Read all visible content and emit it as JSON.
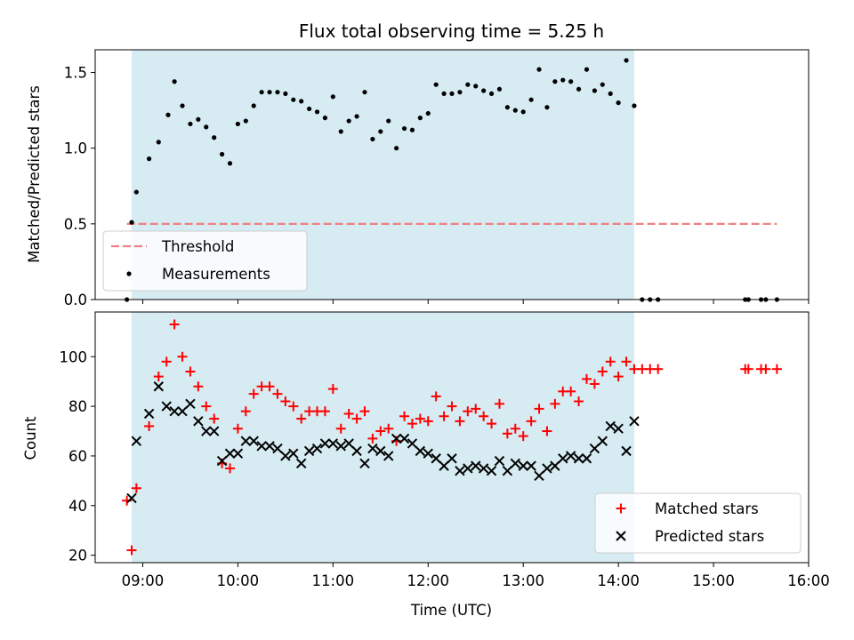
{
  "chart_data": [
    {
      "type": "scatter",
      "title": "Flux total observing time = 5.25 h",
      "xlabel": "",
      "ylabel": "Matched/Predicted stars",
      "xlim": [
        "08:30",
        "16:00"
      ],
      "ylim": [
        0,
        1.65
      ],
      "yticks": [
        "0.0",
        "0.5",
        "1.0",
        "1.5"
      ],
      "shaded_span": [
        "08:53",
        "14:10"
      ],
      "legend": {
        "placement": "lower-left",
        "entries": [
          "Threshold",
          "Measurements"
        ]
      },
      "threshold": {
        "name": "Threshold",
        "value": 0.5,
        "x_range": [
          "08:50",
          "15:40"
        ],
        "color": "#f08080",
        "style": "dashed"
      },
      "series": [
        {
          "name": "Measurements",
          "color": "#000000",
          "points": [
            [
              "08:50",
              0.0
            ],
            [
              "08:53",
              0.51
            ],
            [
              "08:56",
              0.71
            ],
            [
              "09:04",
              0.93
            ],
            [
              "09:10",
              1.04
            ],
            [
              "09:16",
              1.22
            ],
            [
              "09:20",
              1.44
            ],
            [
              "09:25",
              1.28
            ],
            [
              "09:30",
              1.16
            ],
            [
              "09:35",
              1.19
            ],
            [
              "09:40",
              1.14
            ],
            [
              "09:45",
              1.07
            ],
            [
              "09:50",
              0.96
            ],
            [
              "09:55",
              0.9
            ],
            [
              "10:00",
              1.16
            ],
            [
              "10:05",
              1.18
            ],
            [
              "10:10",
              1.28
            ],
            [
              "10:15",
              1.37
            ],
            [
              "10:20",
              1.37
            ],
            [
              "10:25",
              1.37
            ],
            [
              "10:30",
              1.36
            ],
            [
              "10:35",
              1.32
            ],
            [
              "10:40",
              1.31
            ],
            [
              "10:45",
              1.26
            ],
            [
              "10:50",
              1.24
            ],
            [
              "10:55",
              1.2
            ],
            [
              "11:00",
              1.34
            ],
            [
              "11:05",
              1.11
            ],
            [
              "11:10",
              1.18
            ],
            [
              "11:15",
              1.21
            ],
            [
              "11:20",
              1.37
            ],
            [
              "11:25",
              1.06
            ],
            [
              "11:30",
              1.11
            ],
            [
              "11:35",
              1.18
            ],
            [
              "11:40",
              1.0
            ],
            [
              "11:45",
              1.13
            ],
            [
              "11:50",
              1.12
            ],
            [
              "11:55",
              1.2
            ],
            [
              "12:00",
              1.23
            ],
            [
              "12:05",
              1.42
            ],
            [
              "12:10",
              1.36
            ],
            [
              "12:15",
              1.36
            ],
            [
              "12:20",
              1.37
            ],
            [
              "12:25",
              1.42
            ],
            [
              "12:30",
              1.41
            ],
            [
              "12:35",
              1.38
            ],
            [
              "12:40",
              1.36
            ],
            [
              "12:45",
              1.39
            ],
            [
              "12:50",
              1.27
            ],
            [
              "12:55",
              1.25
            ],
            [
              "13:00",
              1.24
            ],
            [
              "13:05",
              1.32
            ],
            [
              "13:10",
              1.52
            ],
            [
              "13:15",
              1.27
            ],
            [
              "13:20",
              1.44
            ],
            [
              "13:25",
              1.45
            ],
            [
              "13:30",
              1.44
            ],
            [
              "13:35",
              1.39
            ],
            [
              "13:40",
              1.52
            ],
            [
              "13:45",
              1.38
            ],
            [
              "13:50",
              1.42
            ],
            [
              "13:55",
              1.36
            ],
            [
              "14:00",
              1.3
            ],
            [
              "14:05",
              1.58
            ],
            [
              "14:10",
              1.28
            ],
            [
              "14:15",
              0.0
            ],
            [
              "14:20",
              0.0
            ],
            [
              "14:25",
              0.0
            ],
            [
              "15:20",
              0.0
            ],
            [
              "15:22",
              0.0
            ],
            [
              "15:30",
              0.0
            ],
            [
              "15:33",
              0.0
            ],
            [
              "15:40",
              0.0
            ]
          ]
        }
      ]
    },
    {
      "type": "scatter",
      "title": "",
      "xlabel": "Time (UTC)",
      "ylabel": "Count",
      "xlim": [
        "08:30",
        "16:00"
      ],
      "ylim": [
        17,
        118
      ],
      "xticks": [
        "09:00",
        "10:00",
        "11:00",
        "12:00",
        "13:00",
        "14:00",
        "15:00",
        "16:00"
      ],
      "yticks": [
        "20",
        "40",
        "60",
        "80",
        "100"
      ],
      "shaded_span": [
        "08:53",
        "14:10"
      ],
      "legend": {
        "placement": "lower-right",
        "entries": [
          "Matched stars",
          "Predicted stars"
        ]
      },
      "series": [
        {
          "name": "Matched stars",
          "color": "#ff0000",
          "marker": "+",
          "points": [
            [
              "08:50",
              42
            ],
            [
              "08:53",
              22
            ],
            [
              "08:56",
              47
            ],
            [
              "09:04",
              72
            ],
            [
              "09:10",
              92
            ],
            [
              "09:15",
              98
            ],
            [
              "09:20",
              113
            ],
            [
              "09:25",
              100
            ],
            [
              "09:30",
              94
            ],
            [
              "09:35",
              88
            ],
            [
              "09:40",
              80
            ],
            [
              "09:45",
              75
            ],
            [
              "09:50",
              57
            ],
            [
              "09:55",
              55
            ],
            [
              "10:00",
              71
            ],
            [
              "10:05",
              78
            ],
            [
              "10:10",
              85
            ],
            [
              "10:15",
              88
            ],
            [
              "10:20",
              88
            ],
            [
              "10:25",
              85
            ],
            [
              "10:30",
              82
            ],
            [
              "10:35",
              80
            ],
            [
              "10:40",
              75
            ],
            [
              "10:45",
              78
            ],
            [
              "10:50",
              78
            ],
            [
              "10:55",
              78
            ],
            [
              "11:00",
              87
            ],
            [
              "11:05",
              71
            ],
            [
              "11:10",
              77
            ],
            [
              "11:15",
              75
            ],
            [
              "11:20",
              78
            ],
            [
              "11:25",
              67
            ],
            [
              "11:30",
              70
            ],
            [
              "11:35",
              71
            ],
            [
              "11:40",
              66
            ],
            [
              "11:45",
              76
            ],
            [
              "11:50",
              73
            ],
            [
              "11:55",
              75
            ],
            [
              "12:00",
              74
            ],
            [
              "12:05",
              84
            ],
            [
              "12:10",
              76
            ],
            [
              "12:15",
              80
            ],
            [
              "12:20",
              74
            ],
            [
              "12:25",
              78
            ],
            [
              "12:30",
              79
            ],
            [
              "12:35",
              76
            ],
            [
              "12:40",
              73
            ],
            [
              "12:45",
              81
            ],
            [
              "12:50",
              69
            ],
            [
              "12:55",
              71
            ],
            [
              "13:00",
              68
            ],
            [
              "13:05",
              74
            ],
            [
              "13:10",
              79
            ],
            [
              "13:15",
              70
            ],
            [
              "13:20",
              81
            ],
            [
              "13:25",
              86
            ],
            [
              "13:30",
              86
            ],
            [
              "13:35",
              82
            ],
            [
              "13:40",
              91
            ],
            [
              "13:45",
              89
            ],
            [
              "13:50",
              94
            ],
            [
              "13:55",
              98
            ],
            [
              "14:00",
              92
            ],
            [
              "14:05",
              98
            ],
            [
              "14:10",
              95
            ],
            [
              "14:15",
              95
            ],
            [
              "14:20",
              95
            ],
            [
              "14:25",
              95
            ],
            [
              "15:20",
              95
            ],
            [
              "15:22",
              95
            ],
            [
              "15:30",
              95
            ],
            [
              "15:33",
              95
            ],
            [
              "15:40",
              95
            ]
          ]
        },
        {
          "name": "Predicted stars",
          "color": "#000000",
          "marker": "x",
          "points": [
            [
              "08:53",
              43
            ],
            [
              "08:56",
              66
            ],
            [
              "09:04",
              77
            ],
            [
              "09:10",
              88
            ],
            [
              "09:15",
              80
            ],
            [
              "09:20",
              78
            ],
            [
              "09:25",
              78
            ],
            [
              "09:30",
              81
            ],
            [
              "09:35",
              74
            ],
            [
              "09:40",
              70
            ],
            [
              "09:45",
              70
            ],
            [
              "09:50",
              58
            ],
            [
              "09:55",
              61
            ],
            [
              "10:00",
              61
            ],
            [
              "10:05",
              66
            ],
            [
              "10:10",
              66
            ],
            [
              "10:15",
              64
            ],
            [
              "10:20",
              64
            ],
            [
              "10:25",
              63
            ],
            [
              "10:30",
              60
            ],
            [
              "10:35",
              61
            ],
            [
              "10:40",
              57
            ],
            [
              "10:45",
              62
            ],
            [
              "10:50",
              63
            ],
            [
              "10:55",
              65
            ],
            [
              "11:00",
              65
            ],
            [
              "11:05",
              64
            ],
            [
              "11:10",
              65
            ],
            [
              "11:15",
              62
            ],
            [
              "11:20",
              57
            ],
            [
              "11:25",
              63
            ],
            [
              "11:30",
              62
            ],
            [
              "11:35",
              60
            ],
            [
              "11:40",
              67
            ],
            [
              "11:45",
              67
            ],
            [
              "11:50",
              65
            ],
            [
              "11:55",
              62
            ],
            [
              "12:00",
              61
            ],
            [
              "12:05",
              59
            ],
            [
              "12:10",
              56
            ],
            [
              "12:15",
              59
            ],
            [
              "12:20",
              54
            ],
            [
              "12:25",
              55
            ],
            [
              "12:30",
              56
            ],
            [
              "12:35",
              55
            ],
            [
              "12:40",
              54
            ],
            [
              "12:45",
              58
            ],
            [
              "12:50",
              54
            ],
            [
              "12:55",
              57
            ],
            [
              "13:00",
              56
            ],
            [
              "13:05",
              56
            ],
            [
              "13:10",
              52
            ],
            [
              "13:15",
              55
            ],
            [
              "13:20",
              56
            ],
            [
              "13:25",
              59
            ],
            [
              "13:30",
              60
            ],
            [
              "13:35",
              59
            ],
            [
              "13:40",
              59
            ],
            [
              "13:45",
              63
            ],
            [
              "13:50",
              66
            ],
            [
              "13:55",
              72
            ],
            [
              "14:00",
              71
            ],
            [
              "14:05",
              62
            ],
            [
              "14:10",
              74
            ]
          ]
        }
      ]
    }
  ],
  "style": {
    "span_color": "#add8e6",
    "matched_color": "#ff0000",
    "predicted_color": "#000000",
    "measurement_color": "#000000",
    "threshold_color": "#f08080"
  }
}
